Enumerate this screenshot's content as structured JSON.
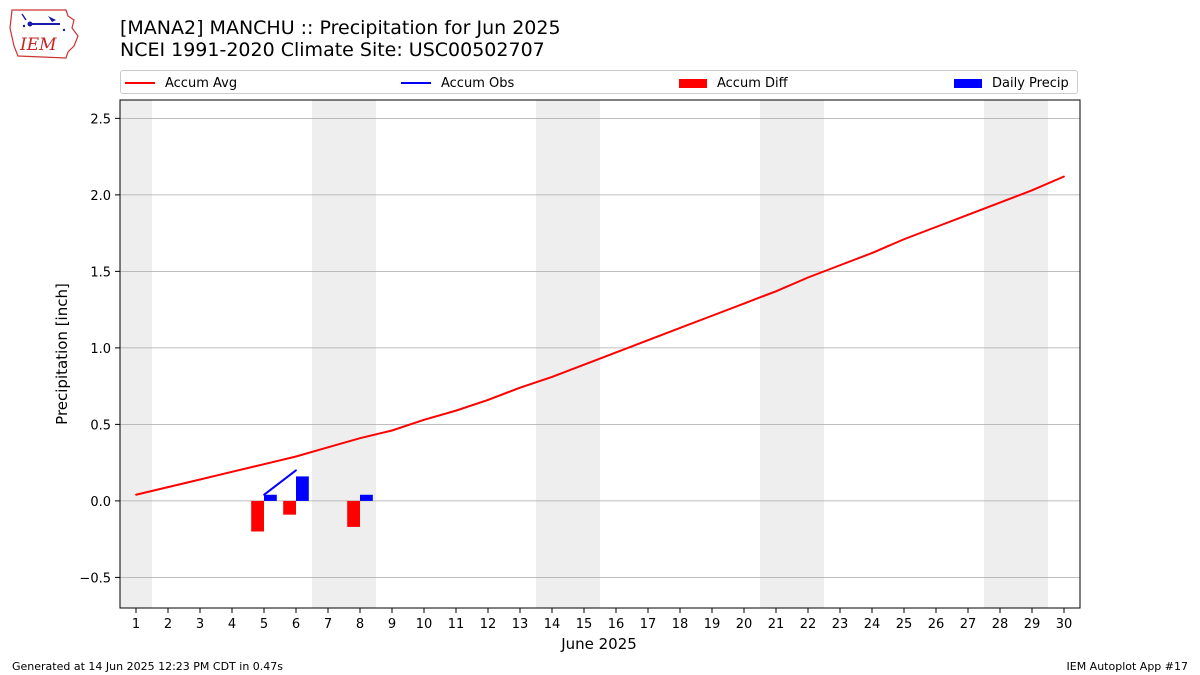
{
  "header": {
    "title_line1": "[MANA2] MANCHU :: Precipitation for Jun 2025",
    "title_line2": "NCEI 1991-2020 Climate Site: USC00502707",
    "logo_text": "IEM"
  },
  "legend": {
    "accum_avg": "Accum Avg",
    "accum_obs": "Accum Obs",
    "accum_diff": "Accum Diff",
    "daily_precip": "Daily Precip"
  },
  "footer": {
    "left": "Generated at 14 Jun 2025 12:23 PM CDT in 0.47s",
    "right": "IEM Autoplot App #17"
  },
  "colors": {
    "accum_avg": "#ff0000",
    "accum_obs": "#0000ff",
    "accum_diff": "#ff0000",
    "daily_precip": "#0000ff",
    "weekend_shade": "#eeeeee",
    "grid": "#aaaaaa"
  },
  "chart_data": {
    "type": "line",
    "xlabel": "June 2025",
    "ylabel": "Precipitation [inch]",
    "xlim": [
      0.5,
      30.5
    ],
    "ylim": [
      -0.7,
      2.62
    ],
    "x_ticks": [
      1,
      2,
      3,
      4,
      5,
      6,
      7,
      8,
      9,
      10,
      11,
      12,
      13,
      14,
      15,
      16,
      17,
      18,
      19,
      20,
      21,
      22,
      23,
      24,
      25,
      26,
      27,
      28,
      29,
      30
    ],
    "y_ticks": [
      -0.5,
      0.0,
      0.5,
      1.0,
      1.5,
      2.0,
      2.5
    ],
    "y_tick_labels": [
      "−0.5",
      "0.0",
      "0.5",
      "1.0",
      "1.5",
      "2.0",
      "2.5"
    ],
    "grid": "horizontal",
    "legend_position": "top",
    "weekend_spans": [
      [
        0.5,
        1.5
      ],
      [
        6.5,
        8.5
      ],
      [
        13.5,
        15.5
      ],
      [
        20.5,
        22.5
      ],
      [
        27.5,
        29.5
      ]
    ],
    "series": [
      {
        "name": "Accum Avg",
        "kind": "line",
        "x": [
          1,
          2,
          3,
          4,
          5,
          6,
          7,
          8,
          9,
          10,
          11,
          12,
          13,
          14,
          15,
          16,
          17,
          18,
          19,
          20,
          21,
          22,
          23,
          24,
          25,
          26,
          27,
          28,
          29,
          30
        ],
        "values": [
          0.04,
          0.09,
          0.14,
          0.19,
          0.24,
          0.29,
          0.35,
          0.41,
          0.46,
          0.53,
          0.59,
          0.66,
          0.74,
          0.81,
          0.89,
          0.97,
          1.05,
          1.13,
          1.21,
          1.29,
          1.37,
          1.46,
          1.54,
          1.62,
          1.71,
          1.79,
          1.87,
          1.95,
          2.03,
          2.12
        ]
      },
      {
        "name": "Accum Obs",
        "kind": "line",
        "x": [
          5,
          6
        ],
        "values": [
          0.04,
          0.2
        ]
      },
      {
        "name": "Accum Diff",
        "kind": "bar",
        "x": [
          5,
          6,
          8
        ],
        "values": [
          -0.2,
          -0.09,
          -0.17
        ]
      },
      {
        "name": "Daily Precip",
        "kind": "bar",
        "x": [
          5,
          6,
          8
        ],
        "values": [
          0.04,
          0.16,
          0.04
        ]
      }
    ]
  }
}
